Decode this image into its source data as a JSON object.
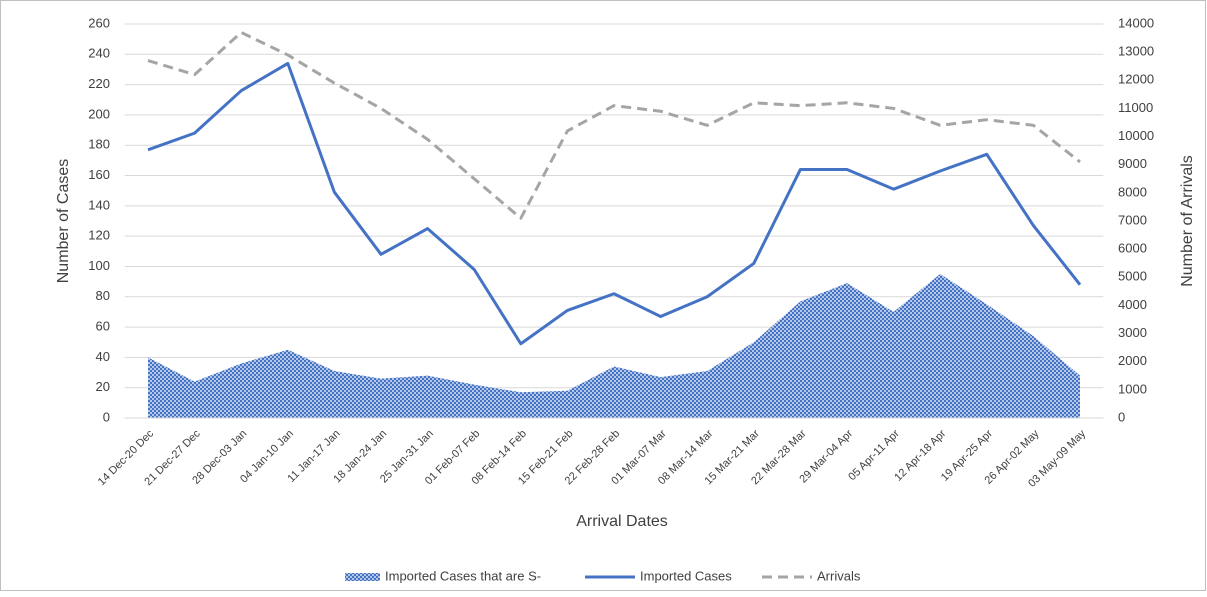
{
  "chart_data": {
    "type": "combo",
    "x_label": "Arrival Dates",
    "y_label": "Number of Cases",
    "y2_label": "Number of Arrivals",
    "categories": [
      "14 Dec-20 Dec",
      "21 Dec-27 Dec",
      "28 Dec-03 Jan",
      "04 Jan-10 Jan",
      "11 Jan-17 Jan",
      "18 Jan-24 Jan",
      "25 Jan-31 Jan",
      "01 Feb-07 Feb",
      "08 Feb-14 Feb",
      "15 Feb-21 Feb",
      "22 Feb-28 Feb",
      "01 Mar-07 Mar",
      "08 Mar-14 Mar",
      "15 Mar-21 Mar",
      "22 Mar-28 Mar",
      "29 Mar-04 Apr",
      "05 Apr-11 Apr",
      "12 Apr-18 Apr",
      "19 Apr-25 Apr",
      "26 Apr-02 May",
      "03 May-09 May"
    ],
    "series": [
      {
        "name": "Imported Cases that are S-",
        "type": "area",
        "color": "#4472c4",
        "values": [
          40,
          24,
          36,
          45,
          31,
          26,
          28,
          22,
          17,
          18,
          34,
          27,
          31,
          50,
          77,
          89,
          70,
          95,
          75,
          54,
          28
        ]
      },
      {
        "name": "Imported Cases",
        "type": "line",
        "color": "#4472c4",
        "values": [
          177,
          188,
          216,
          234,
          149,
          108,
          125,
          98,
          49,
          71,
          82,
          67,
          80,
          102,
          164,
          164,
          151,
          163,
          174,
          127,
          88
        ]
      },
      {
        "name": "Arrivals",
        "type": "line",
        "dashed": true,
        "axis": "y2",
        "color": "#a5a5a5",
        "values": [
          12700,
          12200,
          13700,
          12900,
          11900,
          11000,
          9900,
          8500,
          7100,
          10200,
          11100,
          10900,
          10400,
          11200,
          11100,
          11200,
          11000,
          10400,
          10600,
          10400,
          9100
        ]
      }
    ],
    "ylim": [
      0,
      260
    ],
    "yticks": [
      0,
      20,
      40,
      60,
      80,
      100,
      120,
      140,
      160,
      180,
      200,
      220,
      240,
      260
    ],
    "y2lim": [
      0,
      14000
    ],
    "y2ticks": [
      0,
      1000,
      2000,
      3000,
      4000,
      5000,
      6000,
      7000,
      8000,
      9000,
      10000,
      11000,
      12000,
      13000,
      14000
    ],
    "grid": true,
    "legend": "bottom"
  }
}
